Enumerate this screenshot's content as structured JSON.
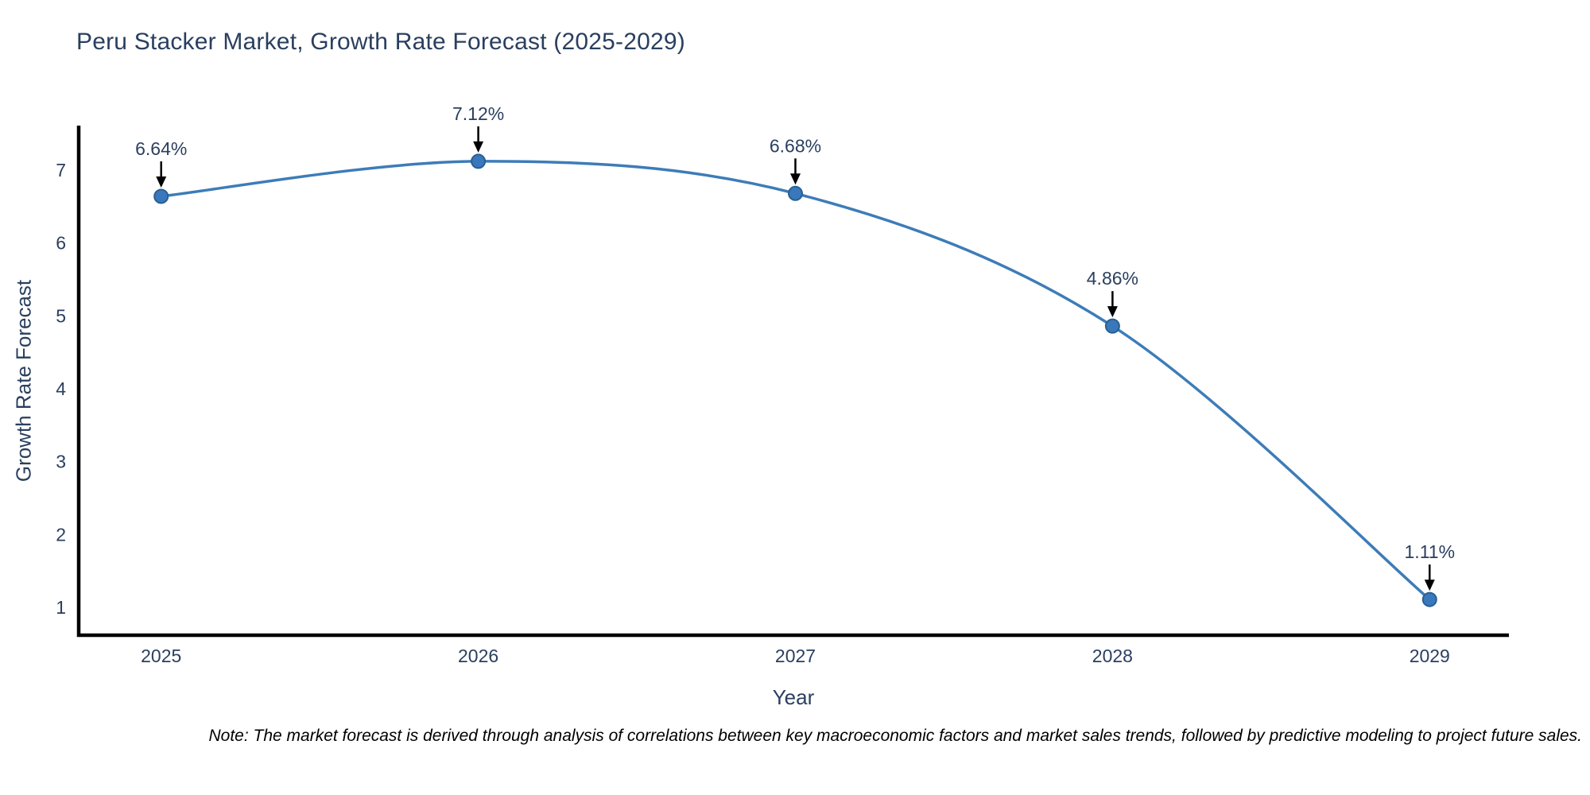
{
  "chart_data": {
    "type": "line",
    "title": "Peru Stacker Market, Growth Rate Forecast (2025-2029)",
    "xlabel": "Year",
    "ylabel": "Growth Rate Forecast",
    "x": [
      2025,
      2026,
      2027,
      2028,
      2029
    ],
    "y": [
      6.64,
      7.12,
      6.68,
      4.86,
      1.11
    ],
    "point_labels": [
      "6.64%",
      "7.12%",
      "6.68%",
      "4.86%",
      "1.11%"
    ],
    "x_tick_labels": [
      "2025",
      "2026",
      "2027",
      "2028",
      "2029"
    ],
    "y_tick_labels": [
      "1",
      "2",
      "3",
      "4",
      "5",
      "6",
      "7"
    ],
    "y_tick_values": [
      1,
      2,
      3,
      4,
      5,
      6,
      7
    ],
    "xlim": [
      2024.74,
      2029.25
    ],
    "ylim": [
      0.62,
      7.61
    ],
    "line_shape": "spline",
    "grid": false,
    "legend": "none",
    "line_color": "#3d7cb8",
    "marker_color": "#3a78bd",
    "marker_edge_color": "#2a5f8f",
    "axis_color": "#000000",
    "text_color": "#2a3f5f",
    "annotation_arrow_color": "#000000"
  },
  "note": {
    "text": "Note: The market forecast is derived through analysis of correlations between key macroeconomic factors and market sales trends, followed by predictive modeling to project future sales."
  }
}
